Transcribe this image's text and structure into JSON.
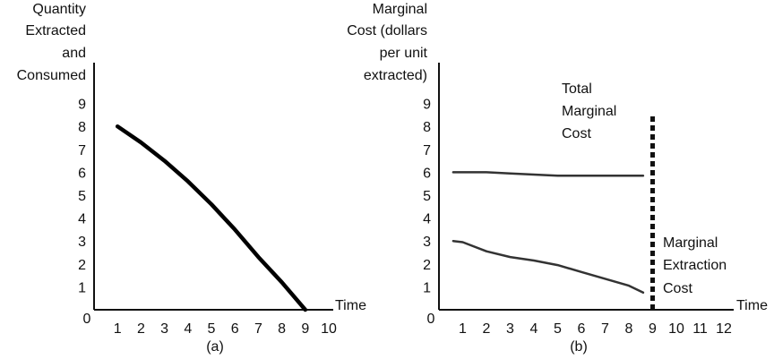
{
  "chart_data": [
    {
      "type": "line",
      "panel_label": "(a)",
      "ylabel": [
        "Quantity",
        "Extracted",
        "and",
        "Consumed"
      ],
      "xlabel": "Time",
      "x_ticks": [
        "1",
        "2",
        "3",
        "4",
        "5",
        "6",
        "7",
        "8",
        "9",
        "10"
      ],
      "y_ticks": [
        "1",
        "2",
        "3",
        "4",
        "5",
        "6",
        "7",
        "8",
        "9"
      ],
      "origin_label": "0",
      "xlim": [
        0,
        10
      ],
      "ylim": [
        0,
        9
      ],
      "grid": false,
      "series": [
        {
          "x": [
            1,
            2,
            3,
            4,
            5,
            6,
            7,
            8,
            9
          ],
          "y": [
            8.0,
            7.3,
            6.5,
            5.6,
            4.6,
            3.5,
            2.3,
            1.2,
            0.0
          ]
        }
      ]
    },
    {
      "type": "line",
      "panel_label": "(b)",
      "ylabel": [
        "Marginal",
        "Cost (dollars",
        "per unit",
        "extracted)"
      ],
      "xlabel": "Time",
      "x_ticks": [
        "1",
        "2",
        "3",
        "4",
        "5",
        "6",
        "7",
        "8",
        "9",
        "10",
        "11",
        "12"
      ],
      "y_ticks": [
        "1",
        "2",
        "3",
        "4",
        "5",
        "6",
        "7",
        "8",
        "9"
      ],
      "origin_label": "0",
      "xlim": [
        0,
        12
      ],
      "ylim": [
        0,
        9
      ],
      "grid": false,
      "series": [
        {
          "x": [
            0.6,
            1,
            2,
            3,
            4,
            5,
            6,
            7,
            8,
            8.6
          ],
          "y": [
            6.0,
            6.0,
            6.0,
            5.95,
            5.9,
            5.85,
            5.85,
            5.85,
            5.85,
            5.85
          ]
        },
        {
          "x": [
            0.6,
            1,
            2,
            3,
            4,
            5,
            6,
            7,
            8,
            8.6
          ],
          "y": [
            3.0,
            2.95,
            2.55,
            2.3,
            2.15,
            1.95,
            1.65,
            1.35,
            1.05,
            0.75
          ]
        },
        {
          "style": "dashed",
          "x": [
            9,
            9
          ],
          "y": [
            0,
            8.5
          ]
        }
      ],
      "annotations": [
        {
          "lines": [
            "Total",
            "Marginal",
            "Cost"
          ]
        },
        {
          "lines": [
            "Marginal",
            "Extraction",
            "Cost"
          ]
        }
      ]
    }
  ]
}
